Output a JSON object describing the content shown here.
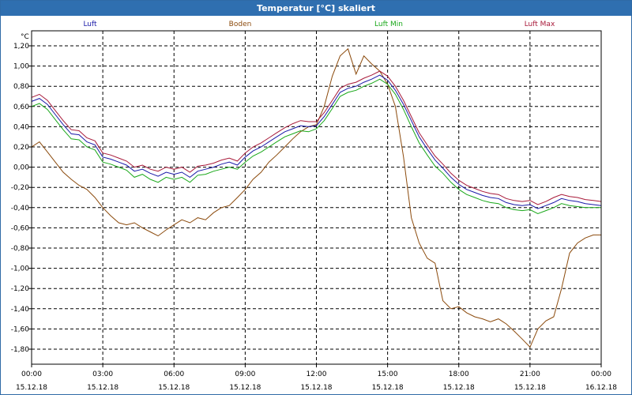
{
  "window": {
    "title": "Temperatur [°C] skaliert"
  },
  "chart_data": {
    "type": "line",
    "title": "Temperatur [°C] skaliert",
    "ylabel": "°C",
    "xlabel": "",
    "ylim": [
      -1.9,
      1.35
    ],
    "xlim": [
      0,
      24
    ],
    "yticks": [
      1.2,
      1.0,
      0.8,
      0.6,
      0.4,
      0.2,
      0.0,
      -0.2,
      -0.4,
      -0.6,
      -0.8,
      -1.0,
      -1.2,
      -1.4,
      -1.6,
      -1.8
    ],
    "ytick_labels": [
      "1,20",
      "1,00",
      "0,80",
      "0,60",
      "0,40",
      "0,20",
      "0,00",
      "-0,20",
      "-0,40",
      "-0,60",
      "-0,80",
      "-1,00",
      "-1,20",
      "-1,40",
      "-1,60",
      "-1,80"
    ],
    "xticks": [
      0,
      3,
      6,
      9,
      12,
      15,
      18,
      21,
      24
    ],
    "xtick_times": [
      "00:00",
      "03:00",
      "06:00",
      "09:00",
      "12:00",
      "15:00",
      "18:00",
      "21:00",
      "00:00"
    ],
    "xtick_dates": [
      "15.12.18",
      "15.12.18",
      "15.12.18",
      "15.12.18",
      "15.12.18",
      "15.12.18",
      "15.12.18",
      "15.12.18",
      "16.12.18"
    ],
    "grid": true,
    "legend_position": "top",
    "series": [
      {
        "name": "Luft",
        "color": "#1a1aa8",
        "x": [
          0,
          0.33,
          0.67,
          1,
          1.33,
          1.67,
          2,
          2.33,
          2.67,
          3,
          3.33,
          3.67,
          4,
          4.33,
          4.67,
          5,
          5.33,
          5.67,
          6,
          6.33,
          6.67,
          7,
          7.33,
          7.67,
          8,
          8.33,
          8.67,
          9,
          9.33,
          9.67,
          10,
          10.33,
          10.67,
          11,
          11.33,
          11.67,
          12,
          12.33,
          12.67,
          13,
          13.33,
          13.67,
          14,
          14.33,
          14.67,
          15,
          15.33,
          15.67,
          16,
          16.33,
          16.67,
          17,
          17.33,
          17.67,
          18,
          18.33,
          18.67,
          19,
          19.33,
          19.67,
          20,
          20.33,
          20.67,
          21,
          21.33,
          21.67,
          22,
          22.33,
          22.67,
          23,
          23.33,
          23.67,
          24
        ],
        "y": [
          0.65,
          0.68,
          0.62,
          0.52,
          0.42,
          0.33,
          0.32,
          0.25,
          0.22,
          0.1,
          0.08,
          0.05,
          0.02,
          -0.04,
          -0.02,
          -0.06,
          -0.09,
          -0.05,
          -0.07,
          -0.05,
          -0.1,
          -0.04,
          -0.02,
          0.0,
          0.03,
          0.05,
          0.02,
          0.1,
          0.16,
          0.2,
          0.25,
          0.3,
          0.35,
          0.38,
          0.41,
          0.4,
          0.41,
          0.5,
          0.62,
          0.74,
          0.78,
          0.8,
          0.84,
          0.87,
          0.91,
          0.86,
          0.76,
          0.62,
          0.46,
          0.3,
          0.18,
          0.07,
          -0.01,
          -0.1,
          -0.17,
          -0.22,
          -0.25,
          -0.28,
          -0.3,
          -0.31,
          -0.35,
          -0.37,
          -0.38,
          -0.37,
          -0.41,
          -0.38,
          -0.35,
          -0.31,
          -0.33,
          -0.34,
          -0.36,
          -0.37,
          -0.38
        ]
      },
      {
        "name": "Boden",
        "color": "#8b4a0c",
        "x": [
          0,
          0.33,
          0.67,
          1,
          1.33,
          1.67,
          2,
          2.33,
          2.67,
          3,
          3.33,
          3.67,
          4,
          4.33,
          4.67,
          5,
          5.33,
          5.67,
          6,
          6.33,
          6.67,
          7,
          7.33,
          7.67,
          8,
          8.33,
          8.67,
          9,
          9.33,
          9.67,
          10,
          10.33,
          10.67,
          11,
          11.33,
          11.67,
          12,
          12.33,
          12.67,
          13,
          13.33,
          13.67,
          14,
          14.33,
          14.67,
          15,
          15.33,
          15.67,
          16,
          16.33,
          16.67,
          17,
          17.33,
          17.67,
          18,
          18.33,
          18.67,
          19,
          19.33,
          19.67,
          20,
          20.33,
          20.67,
          21,
          21.33,
          21.67,
          22,
          22.33,
          22.67,
          23,
          23.33,
          23.67,
          24
        ],
        "y": [
          0.2,
          0.25,
          0.15,
          0.05,
          -0.05,
          -0.12,
          -0.18,
          -0.22,
          -0.3,
          -0.4,
          -0.48,
          -0.55,
          -0.57,
          -0.55,
          -0.6,
          -0.64,
          -0.68,
          -0.62,
          -0.57,
          -0.52,
          -0.55,
          -0.5,
          -0.52,
          -0.45,
          -0.4,
          -0.38,
          -0.3,
          -0.22,
          -0.12,
          -0.05,
          0.05,
          0.12,
          0.2,
          0.28,
          0.35,
          0.4,
          0.42,
          0.6,
          0.9,
          1.1,
          1.17,
          0.92,
          1.1,
          1.02,
          0.95,
          0.82,
          0.6,
          0.1,
          -0.5,
          -0.75,
          -0.9,
          -0.95,
          -1.32,
          -1.4,
          -1.38,
          -1.44,
          -1.48,
          -1.5,
          -1.53,
          -1.5,
          -1.55,
          -1.62,
          -1.7,
          -1.78,
          -1.6,
          -1.52,
          -1.48,
          -1.2,
          -0.85,
          -0.75,
          -0.7,
          -0.67,
          -0.67
        ]
      },
      {
        "name": "Luft Min",
        "color": "#1aa81a",
        "x": [
          0,
          0.33,
          0.67,
          1,
          1.33,
          1.67,
          2,
          2.33,
          2.67,
          3,
          3.33,
          3.67,
          4,
          4.33,
          4.67,
          5,
          5.33,
          5.67,
          6,
          6.33,
          6.67,
          7,
          7.33,
          7.67,
          8,
          8.33,
          8.67,
          9,
          9.33,
          9.67,
          10,
          10.33,
          10.67,
          11,
          11.33,
          11.67,
          12,
          12.33,
          12.67,
          13,
          13.33,
          13.67,
          14,
          14.33,
          14.67,
          15,
          15.33,
          15.67,
          16,
          16.33,
          16.67,
          17,
          17.33,
          17.67,
          18,
          18.33,
          18.67,
          19,
          19.33,
          19.67,
          20,
          20.33,
          20.67,
          21,
          21.33,
          21.67,
          22,
          22.33,
          22.67,
          23,
          23.33,
          23.67,
          24
        ],
        "y": [
          0.6,
          0.63,
          0.57,
          0.47,
          0.37,
          0.28,
          0.27,
          0.2,
          0.17,
          0.05,
          0.03,
          0.0,
          -0.03,
          -0.1,
          -0.07,
          -0.12,
          -0.15,
          -0.1,
          -0.12,
          -0.1,
          -0.15,
          -0.08,
          -0.07,
          -0.04,
          -0.02,
          0.0,
          -0.02,
          0.05,
          0.11,
          0.15,
          0.2,
          0.25,
          0.3,
          0.33,
          0.36,
          0.35,
          0.38,
          0.46,
          0.58,
          0.7,
          0.74,
          0.76,
          0.8,
          0.83,
          0.87,
          0.82,
          0.72,
          0.57,
          0.4,
          0.24,
          0.12,
          0.01,
          -0.06,
          -0.15,
          -0.22,
          -0.27,
          -0.3,
          -0.33,
          -0.35,
          -0.36,
          -0.4,
          -0.42,
          -0.43,
          -0.42,
          -0.46,
          -0.43,
          -0.4,
          -0.36,
          -0.38,
          -0.39,
          -0.4,
          -0.4,
          -0.4
        ]
      },
      {
        "name": "Luft Max",
        "color": "#a81a3a",
        "x": [
          0,
          0.33,
          0.67,
          1,
          1.33,
          1.67,
          2,
          2.33,
          2.67,
          3,
          3.33,
          3.67,
          4,
          4.33,
          4.67,
          5,
          5.33,
          5.67,
          6,
          6.33,
          6.67,
          7,
          7.33,
          7.67,
          8,
          8.33,
          8.67,
          9,
          9.33,
          9.67,
          10,
          10.33,
          10.67,
          11,
          11.33,
          11.67,
          12,
          12.33,
          12.67,
          13,
          13.33,
          13.67,
          14,
          14.33,
          14.67,
          15,
          15.33,
          15.67,
          16,
          16.33,
          16.67,
          17,
          17.33,
          17.67,
          18,
          18.33,
          18.67,
          19,
          19.33,
          19.67,
          20,
          20.33,
          20.67,
          21,
          21.33,
          21.67,
          22,
          22.33,
          22.67,
          23,
          23.33,
          23.67,
          24
        ],
        "y": [
          0.69,
          0.72,
          0.66,
          0.56,
          0.46,
          0.37,
          0.36,
          0.29,
          0.26,
          0.14,
          0.12,
          0.09,
          0.06,
          0.0,
          0.02,
          -0.02,
          -0.04,
          0.0,
          -0.02,
          0.0,
          -0.05,
          0.01,
          0.02,
          0.04,
          0.07,
          0.09,
          0.06,
          0.14,
          0.2,
          0.24,
          0.29,
          0.34,
          0.39,
          0.43,
          0.46,
          0.45,
          0.45,
          0.54,
          0.66,
          0.78,
          0.82,
          0.84,
          0.88,
          0.91,
          0.95,
          0.9,
          0.8,
          0.66,
          0.5,
          0.34,
          0.22,
          0.11,
          0.03,
          -0.06,
          -0.13,
          -0.18,
          -0.21,
          -0.24,
          -0.26,
          -0.27,
          -0.31,
          -0.33,
          -0.34,
          -0.33,
          -0.37,
          -0.34,
          -0.3,
          -0.27,
          -0.29,
          -0.3,
          -0.32,
          -0.33,
          -0.34
        ]
      }
    ]
  }
}
